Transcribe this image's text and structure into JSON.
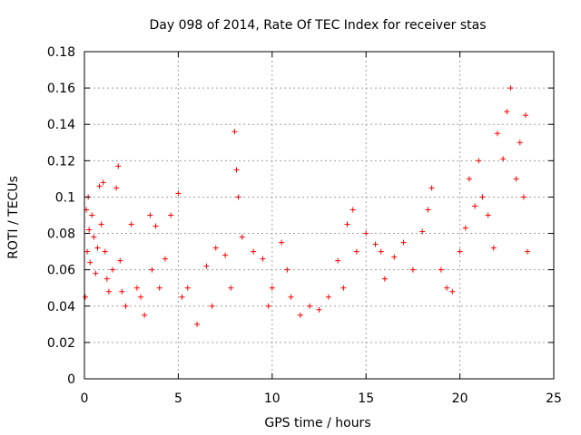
{
  "chart_data": {
    "type": "scatter",
    "title": "Day 098 of 2014, Rate Of TEC Index for receiver stas",
    "xlabel": "GPS time / hours",
    "ylabel": "ROTI / TECUs",
    "xlim": [
      0,
      25
    ],
    "ylim": [
      0,
      0.18
    ],
    "xticks": [
      0,
      5,
      10,
      15,
      20,
      25
    ],
    "yticks": [
      0,
      0.02,
      0.04,
      0.06,
      0.08,
      0.1,
      0.12,
      0.14,
      0.16,
      0.18
    ],
    "xtick_labels": [
      "0",
      "5",
      "10",
      "15",
      "20",
      "25"
    ],
    "ytick_labels": [
      "0",
      "0.02",
      "0.04",
      "0.06",
      "0.08",
      "0.1",
      "0.12",
      "0.14",
      "0.16",
      "0.18"
    ],
    "grid": true,
    "marker": "+",
    "series": [
      {
        "name": "stas",
        "color": "#ff0000",
        "x": [
          0.05,
          0.1,
          0.15,
          0.2,
          0.25,
          0.3,
          0.4,
          0.5,
          0.6,
          0.7,
          0.8,
          0.9,
          1.0,
          1.1,
          1.2,
          1.3,
          1.5,
          1.7,
          1.8,
          1.9,
          2.0,
          2.2,
          2.5,
          2.8,
          3.0,
          3.2,
          3.5,
          3.6,
          3.8,
          4.0,
          4.3,
          4.6,
          5.0,
          5.2,
          5.5,
          6.0,
          6.5,
          6.8,
          7.0,
          7.5,
          7.8,
          8.0,
          8.1,
          8.2,
          8.4,
          9.0,
          9.5,
          9.8,
          10.0,
          10.5,
          10.8,
          11.0,
          11.5,
          12.0,
          12.5,
          13.0,
          13.5,
          13.8,
          14.0,
          14.3,
          14.5,
          15.0,
          15.5,
          15.8,
          16.0,
          16.5,
          17.0,
          17.5,
          18.0,
          18.3,
          18.5,
          19.0,
          19.3,
          19.6,
          20.0,
          20.3,
          20.5,
          20.8,
          21.0,
          21.2,
          21.5,
          21.8,
          22.0,
          22.3,
          22.5,
          22.7,
          23.0,
          23.2,
          23.4,
          23.5,
          23.6
        ],
        "y": [
          0.045,
          0.093,
          0.07,
          0.1,
          0.082,
          0.064,
          0.09,
          0.078,
          0.058,
          0.072,
          0.106,
          0.085,
          0.108,
          0.07,
          0.055,
          0.048,
          0.06,
          0.105,
          0.117,
          0.065,
          0.048,
          0.04,
          0.085,
          0.05,
          0.045,
          0.035,
          0.09,
          0.06,
          0.084,
          0.05,
          0.066,
          0.09,
          0.102,
          0.045,
          0.05,
          0.03,
          0.062,
          0.04,
          0.072,
          0.068,
          0.05,
          0.136,
          0.115,
          0.1,
          0.078,
          0.07,
          0.066,
          0.04,
          0.05,
          0.075,
          0.06,
          0.045,
          0.035,
          0.04,
          0.038,
          0.045,
          0.065,
          0.05,
          0.085,
          0.093,
          0.07,
          0.08,
          0.074,
          0.07,
          0.055,
          0.067,
          0.075,
          0.06,
          0.081,
          0.093,
          0.105,
          0.06,
          0.05,
          0.048,
          0.07,
          0.083,
          0.11,
          0.095,
          0.12,
          0.1,
          0.09,
          0.072,
          0.135,
          0.121,
          0.147,
          0.16,
          0.11,
          0.13,
          0.1,
          0.145,
          0.07
        ]
      }
    ]
  }
}
